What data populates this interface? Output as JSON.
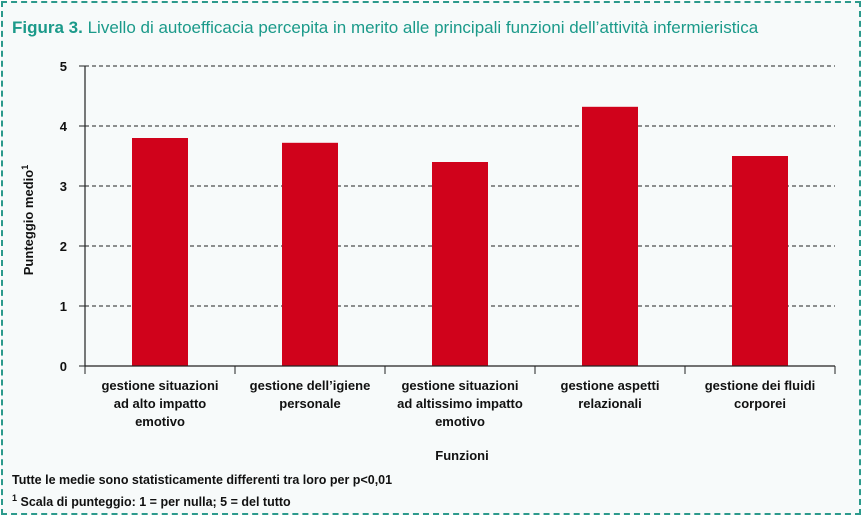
{
  "figure": {
    "label": "Figura 3.",
    "title": "Livello di autoefficacia percepita in merito alle principali funzioni dell’attività infermieristica"
  },
  "notes": {
    "note1": "Tutte le medie sono statisticamente differenti tra loro per p<0,01",
    "note2_sup": "1",
    "note2": "Scala di punteggio: 1 = per nulla; 5 = del tutto"
  },
  "colors": {
    "accent": "#1b9a8a",
    "bar": "#d0021b",
    "frame": "#2c9a8c"
  },
  "chart_data": {
    "type": "bar",
    "title": "",
    "xlabel": "Funzioni",
    "ylabel": "Punteggio medio",
    "ylabel_sup": "1",
    "ylim": [
      0,
      5
    ],
    "yticks": [
      "0",
      "1",
      "2",
      "3",
      "4",
      "5"
    ],
    "grid": true,
    "categories": [
      [
        "gestione situazioni",
        "ad alto impatto",
        "emotivo"
      ],
      [
        "gestione dell’igiene",
        "personale"
      ],
      [
        "gestione situazioni",
        "ad altissimo impatto",
        "emotivo"
      ],
      [
        "gestione aspetti",
        "relazionali"
      ],
      [
        "gestione dei fluidi",
        "corporei"
      ]
    ],
    "values": [
      3.8,
      3.72,
      3.4,
      4.32,
      3.5
    ]
  }
}
